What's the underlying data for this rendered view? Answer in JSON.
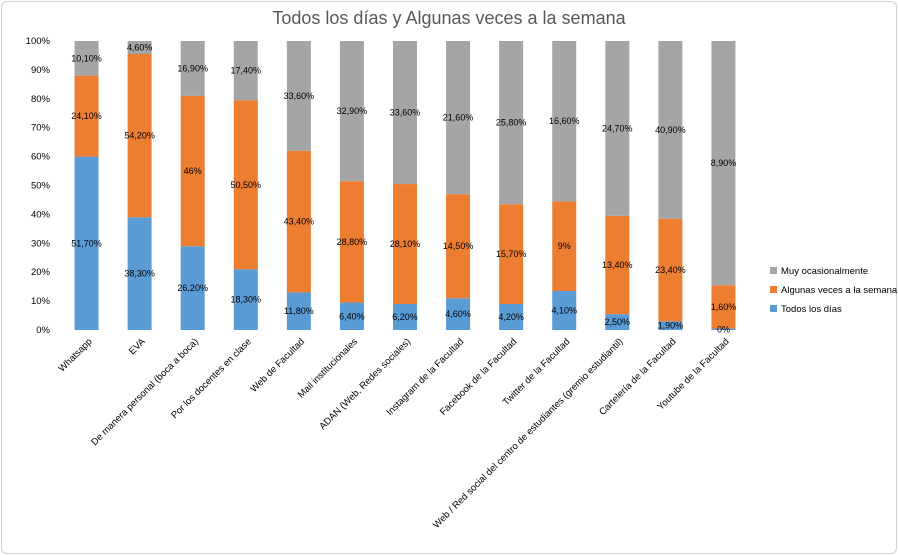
{
  "chart_data": {
    "type": "bar",
    "stacked": true,
    "title": "Todos los días y Algunas veces a la semana",
    "categories": [
      "Whatsapp",
      "EVA",
      "De manera personal (boca a boca)",
      "Por los docentes en clase",
      "Web de Facultad",
      "Mail institucionales",
      "ADAN (Web, Redes sociales)",
      "Instagram de la Facultad",
      "Facebook de la Facultad",
      "Twitter de la Facultad",
      "Web / Red social del centro de estudiantes (gremio estudiantil)",
      "Cartelería de la Facultad",
      "Youtube de la Facultad"
    ],
    "series": [
      {
        "name": "Todos los días",
        "color": "#5B9BD5",
        "values": [
          60,
          39,
          29,
          21,
          13,
          9.5,
          9,
          11,
          9,
          13.5,
          5.5,
          3,
          0.5
        ],
        "labels": [
          "51,70%",
          "38,30%",
          "26,20%",
          "18,30%",
          "11,80%",
          "6,40%",
          "6,20%",
          "4,60%",
          "4,20%",
          "4,10%",
          "2,50%",
          "1,90%",
          "0%"
        ]
      },
      {
        "name": "Algunas veces a la semana",
        "color": "#ED7D31",
        "values": [
          28,
          56.5,
          52,
          58.5,
          49,
          42,
          41.5,
          36,
          34.5,
          31,
          34,
          35.5,
          15
        ],
        "labels": [
          "24,10%",
          "54,20%",
          "46%",
          "50,50%",
          "43,40%",
          "28,80%",
          "28,10%",
          "14,50%",
          "15,70%",
          "9%",
          "13,40%",
          "23,40%",
          "1,60%"
        ]
      },
      {
        "name": "Muy ocasionalmente",
        "color": "#A5A5A5",
        "values": [
          12,
          4.5,
          19,
          20.5,
          38,
          48.5,
          49.5,
          53,
          56.5,
          55.5,
          60.5,
          61.5,
          84.5
        ],
        "labels": [
          "10,10%",
          "4,60%",
          "16,90%",
          "17,40%",
          "33,60%",
          "32,90%",
          "33,60%",
          "21,60%",
          "25,80%",
          "16,60%",
          "24,70%",
          "40,90%",
          "8,90%"
        ]
      }
    ],
    "y_ticks": [
      "0%",
      "10%",
      "20%",
      "30%",
      "40%",
      "50%",
      "60%",
      "70%",
      "80%",
      "90%",
      "100%"
    ],
    "ylim": [
      0,
      100
    ],
    "grid": false,
    "legend_position": "right"
  }
}
